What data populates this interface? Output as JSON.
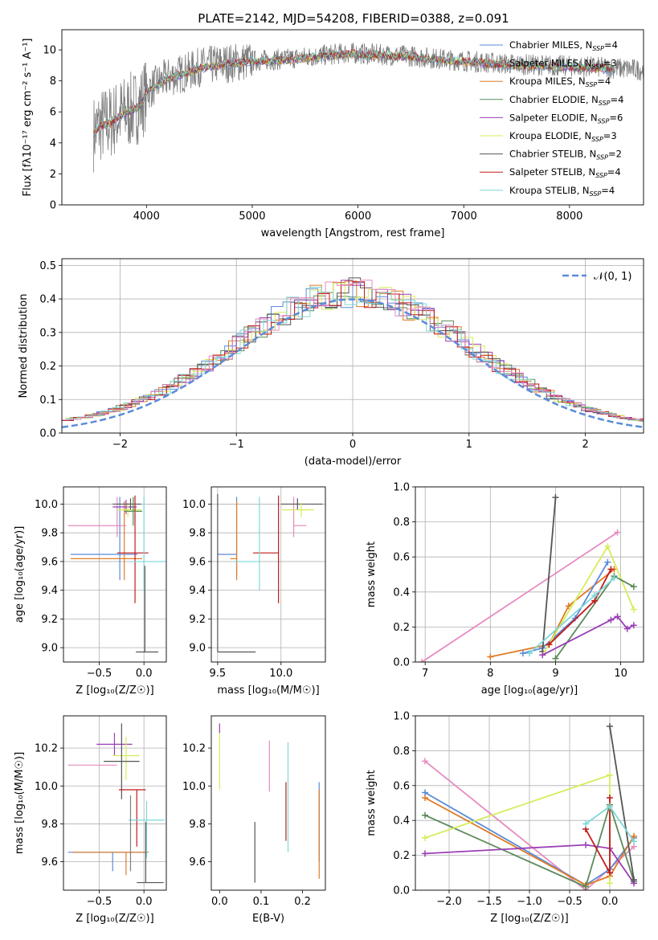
{
  "figure": {
    "title": "PLATE=2142, MJD=54208, FIBERID=0388, z=0.091"
  },
  "colors": {
    "Chabrier MILES": "#5b8bd9",
    "Salpeter MILES": "#7f7f7f",
    "Kroupa MILES": "#e07b25",
    "Chabrier ELODIE": "#5a8a5a",
    "Salpeter ELODIE": "#9b3fb5",
    "Kroupa ELODIE": "#d6ec5a",
    "Chabrier STELIB": "#555555",
    "Salpeter STELIB": "#c21a1a",
    "Kroupa STELIB": "#7dd8d8",
    "pink": "#e68bbf"
  },
  "legend_models": [
    {
      "model": "Chabrier MILES",
      "n": "4"
    },
    {
      "model": "Salpeter MILES",
      "n": "3"
    },
    {
      "model": "Kroupa MILES",
      "n": "4"
    },
    {
      "model": "Chabrier ELODIE",
      "n": "4"
    },
    {
      "model": "Salpeter ELODIE",
      "n": "6"
    },
    {
      "model": "Kroupa ELODIE",
      "n": "3"
    },
    {
      "model": "Chabrier STELIB",
      "n": "2"
    },
    {
      "model": "Salpeter STELIB",
      "n": "4"
    },
    {
      "model": "Kroupa STELIB",
      "n": "4"
    }
  ],
  "chart_data": [
    {
      "id": "spectrum",
      "type": "line",
      "xlabel": "wavelength [Angstrom, rest frame]",
      "ylabel": "Flux [fλ10⁻¹⁷ erg cm⁻² s⁻¹ A⁻¹]",
      "xlim": [
        3200,
        8700
      ],
      "ylim": [
        0,
        11.3
      ],
      "xticks": [
        4000,
        5000,
        6000,
        7000,
        8000
      ],
      "yticks": [
        0,
        2,
        4,
        6,
        8,
        10
      ],
      "grid": false,
      "legend": "top-right",
      "continuum": {
        "x": [
          3500,
          3550,
          3650,
          3750,
          3850,
          3950,
          4000,
          4100,
          4200,
          4300,
          4400,
          4500,
          4700,
          5000,
          5300,
          5600,
          5900,
          6200,
          6500,
          6800,
          7000,
          7200,
          7400,
          7800,
          8200,
          8500,
          8700
        ],
        "y": [
          4.6,
          5.1,
          5.3,
          5.8,
          6.1,
          6.5,
          7.3,
          7.8,
          8.2,
          8.4,
          8.6,
          8.9,
          9.1,
          9.3,
          9.4,
          9.6,
          9.8,
          9.7,
          9.6,
          9.4,
          9.3,
          9.2,
          9.1,
          9.0,
          8.9,
          8.8,
          8.7
        ]
      },
      "data_color": "#7f7f7f"
    },
    {
      "id": "residuals",
      "type": "line",
      "xlabel": "(data-model)/error",
      "ylabel": "Normed distribution",
      "xlim": [
        -2.5,
        2.5
      ],
      "ylim": [
        0,
        0.52
      ],
      "xticks": [
        -2,
        -1,
        0,
        1,
        2
      ],
      "yticks": [
        0.0,
        0.1,
        0.2,
        0.3,
        0.4,
        0.5
      ],
      "grid": true,
      "legend": "top-right",
      "reference_label": "𝒩(0, 1)",
      "reference_color": "#5b8bd9",
      "bin_width": 0.1
    },
    {
      "id": "age-Z",
      "type": "scatter",
      "xlabel": "Z [log₁₀(Z/Z☉)]",
      "ylabel": "age  [log₁₀(age/yr)]",
      "xlim": [
        -0.9,
        0.25
      ],
      "ylim": [
        8.9,
        10.12
      ],
      "xticks": [
        -0.5,
        0.0
      ],
      "yticks": [
        9.0,
        9.2,
        9.4,
        9.6,
        9.8,
        10.0
      ],
      "grid": true,
      "points": [
        {
          "model": "Chabrier MILES",
          "x": -0.27,
          "xerr": [
            0.55,
            0.2
          ],
          "y": 9.65,
          "yerr": [
            0.18,
            0.4
          ]
        },
        {
          "model": "Kroupa MILES",
          "x": -0.22,
          "xerr": [
            0.6,
            0.2
          ],
          "y": 9.62,
          "yerr": [
            0.15,
            0.4
          ]
        },
        {
          "model": "pink",
          "x": -0.3,
          "xerr": [
            0.55,
            0.1
          ],
          "y": 9.85,
          "yerr": [
            0.08,
            0.2
          ]
        },
        {
          "model": "Salpeter ELODIE",
          "x": -0.2,
          "xerr": [
            0.15,
            0.12
          ],
          "y": 9.98,
          "yerr": [
            0.05,
            0.05
          ]
        },
        {
          "model": "Kroupa ELODIE",
          "x": -0.18,
          "xerr": [
            0.12,
            0.15
          ],
          "y": 9.96,
          "yerr": [
            0.05,
            0.05
          ]
        },
        {
          "model": "Chabrier STELIB",
          "x": -0.15,
          "xerr": [
            0.2,
            0.12
          ],
          "y": 10.0,
          "yerr": [
            0.04,
            0.04
          ]
        },
        {
          "model": "Salpeter STELIB",
          "x": -0.1,
          "xerr": [
            0.2,
            0.15
          ],
          "y": 9.66,
          "yerr": [
            0.35,
            0.4
          ]
        },
        {
          "model": "Kroupa STELIB",
          "x": 0.0,
          "xerr": [
            0.15,
            0.25
          ],
          "y": 9.6,
          "yerr": [
            0.2,
            0.45
          ]
        },
        {
          "model": "Chabrier ELODIE",
          "x": -0.12,
          "xerr": [
            0.1,
            0.1
          ],
          "y": 9.95,
          "yerr": [
            0.1,
            0.1
          ]
        },
        {
          "model": "Chabrier STELIB",
          "x": 0.01,
          "xerr": [
            0.1,
            0.15
          ],
          "y": 8.97,
          "yerr": [
            0.0,
            0.6
          ]
        }
      ]
    },
    {
      "id": "age-mass",
      "type": "scatter",
      "xlabel": "mass [log₁₀(M/M☉)]",
      "ylabel": "",
      "xlim": [
        9.45,
        10.35
      ],
      "ylim": [
        8.9,
        10.12
      ],
      "xticks": [
        9.5,
        10.0
      ],
      "yticks": [
        9.0,
        9.2,
        9.4,
        9.6,
        9.8,
        10.0
      ],
      "grid": true,
      "points": [
        {
          "model": "Chabrier MILES",
          "x": 9.65,
          "xerr": [
            0.15,
            0.0
          ],
          "y": 9.65,
          "yerr": [
            0.15,
            0.4
          ]
        },
        {
          "model": "Kroupa MILES",
          "x": 9.65,
          "xerr": [
            0.05,
            0.0
          ],
          "y": 9.62,
          "yerr": [
            0.15,
            0.4
          ]
        },
        {
          "model": "pink",
          "x": 10.1,
          "xerr": [
            0.0,
            0.1
          ],
          "y": 9.85,
          "yerr": [
            0.08,
            0.2
          ]
        },
        {
          "model": "Salpeter STELIB",
          "x": 9.98,
          "xerr": [
            0.2,
            0.0
          ],
          "y": 9.66,
          "yerr": [
            0.35,
            0.4
          ]
        },
        {
          "model": "Kroupa STELIB",
          "x": 9.83,
          "xerr": [
            0.2,
            0.0
          ],
          "y": 9.6,
          "yerr": [
            0.2,
            0.45
          ]
        },
        {
          "model": "Chabrier STELIB",
          "x": 9.5,
          "xerr": [
            0.0,
            0.3
          ],
          "y": 8.97,
          "yerr": [
            0.0,
            1.1
          ]
        },
        {
          "model": "Chabrier STELIB",
          "x": 10.13,
          "xerr": [
            0.13,
            0.2
          ],
          "y": 10.0,
          "yerr": [
            0.04,
            0.04
          ]
        },
        {
          "model": "Kroupa ELODIE",
          "x": 10.16,
          "xerr": [
            0.15,
            0.1
          ],
          "y": 9.96,
          "yerr": [
            0.05,
            0.05
          ]
        }
      ]
    },
    {
      "id": "weight-age",
      "type": "line",
      "xlabel": "age  [log₁₀(age/yr)]",
      "ylabel": "mass weight",
      "xlim": [
        6.85,
        10.35
      ],
      "ylim": [
        0,
        1.0
      ],
      "xticks": [
        7,
        8,
        9,
        10
      ],
      "yticks": [
        0.0,
        0.2,
        0.4,
        0.6,
        0.8,
        1.0
      ],
      "grid": true,
      "series": [
        {
          "model": "pink",
          "x": [
            6.95,
            9.95
          ],
          "y": [
            0.0,
            0.74
          ]
        },
        {
          "model": "Kroupa MILES",
          "x": [
            8.0,
            8.9,
            9.2,
            9.9
          ],
          "y": [
            0.03,
            0.1,
            0.32,
            0.53
          ]
        },
        {
          "model": "Chabrier MILES",
          "x": [
            8.5,
            8.8,
            9.3,
            9.8
          ],
          "y": [
            0.05,
            0.08,
            0.25,
            0.57
          ]
        },
        {
          "model": "Chabrier STELIB",
          "x": [
            8.8,
            9.0
          ],
          "y": [
            0.06,
            0.94
          ]
        },
        {
          "model": "Kroupa ELODIE",
          "x": [
            8.8,
            9.8,
            10.2
          ],
          "y": [
            0.04,
            0.66,
            0.3
          ]
        },
        {
          "model": "Chabrier ELODIE",
          "x": [
            9.0,
            9.9,
            10.2
          ],
          "y": [
            0.02,
            0.49,
            0.43
          ]
        },
        {
          "model": "Salpeter STELIB",
          "x": [
            8.9,
            9.6,
            9.85
          ],
          "y": [
            0.1,
            0.35,
            0.53
          ]
        },
        {
          "model": "Salpeter ELODIE",
          "x": [
            8.8,
            9.85,
            9.95,
            10.1,
            10.2
          ],
          "y": [
            0.04,
            0.24,
            0.26,
            0.19,
            0.21
          ]
        },
        {
          "model": "Kroupa STELIB",
          "x": [
            8.6,
            9.6,
            9.9
          ],
          "y": [
            0.05,
            0.38,
            0.48
          ]
        }
      ]
    },
    {
      "id": "mass-Z",
      "type": "scatter",
      "xlabel": "Z [log₁₀(Z/Z☉)]",
      "ylabel": "mass [log₁₀(M/M☉)]",
      "xlim": [
        -0.9,
        0.25
      ],
      "ylim": [
        9.45,
        10.37
      ],
      "xticks": [
        -0.5,
        0.0
      ],
      "yticks": [
        9.6,
        9.8,
        10.0,
        10.2
      ],
      "grid": true,
      "points": [
        {
          "model": "Chabrier MILES",
          "x": -0.35,
          "xerr": [
            0.5,
            0.4
          ],
          "y": 9.65,
          "yerr": [
            0.1,
            0.0
          ]
        },
        {
          "model": "Kroupa MILES",
          "x": -0.2,
          "xerr": [
            0.6,
            0.25
          ],
          "y": 9.65,
          "yerr": [
            0.12,
            0.0
          ]
        },
        {
          "model": "pink",
          "x": -0.55,
          "xerr": [
            0.3,
            0.25
          ],
          "y": 10.11,
          "yerr": [
            0.0,
            0.0
          ]
        },
        {
          "model": "Salpeter ELODIE",
          "x": -0.33,
          "xerr": [
            0.2,
            0.2
          ],
          "y": 10.22,
          "yerr": [
            0.06,
            0.06
          ]
        },
        {
          "model": "Kroupa ELODIE",
          "x": -0.2,
          "xerr": [
            0.15,
            0.15
          ],
          "y": 10.16,
          "yerr": [
            0.13,
            0.1
          ]
        },
        {
          "model": "Chabrier STELIB",
          "x": -0.25,
          "xerr": [
            0.2,
            0.2
          ],
          "y": 10.13,
          "yerr": [
            0.2,
            0.2
          ]
        },
        {
          "model": "Salpeter STELIB",
          "x": -0.08,
          "xerr": [
            0.2,
            0.1
          ],
          "y": 9.98,
          "yerr": [
            0.3,
            0.0
          ]
        },
        {
          "model": "Kroupa STELIB",
          "x": 0.03,
          "xerr": [
            0.2,
            0.2
          ],
          "y": 9.82,
          "yerr": [
            0.2,
            0.1
          ]
        },
        {
          "model": "Chabrier STELIB",
          "x": 0.02,
          "xerr": [
            0.1,
            0.2
          ],
          "y": 9.49,
          "yerr": [
            0.0,
            0.32
          ]
        },
        {
          "model": "Salpeter MILES",
          "x": -0.15,
          "xerr": [
            0.0,
            0.0
          ],
          "y": 9.55,
          "yerr": [
            0.0,
            0.4
          ]
        }
      ]
    },
    {
      "id": "mass-EBV",
      "type": "scatter",
      "xlabel": "E(B-V)",
      "ylabel": "",
      "xlim": [
        -0.02,
        0.255
      ],
      "ylim": [
        9.45,
        10.37
      ],
      "xticks": [
        0.0,
        0.1,
        0.2
      ],
      "yticks": [
        9.6,
        9.8,
        10.0,
        10.2
      ],
      "grid": false,
      "points": [
        {
          "model": "Kroupa ELODIE",
          "x": 0.0,
          "yrange": [
            9.98,
            10.3
          ]
        },
        {
          "model": "Salpeter ELODIE",
          "x": 0.0,
          "yrange": [
            10.28,
            10.33
          ]
        },
        {
          "model": "Chabrier STELIB",
          "x": 0.085,
          "yrange": [
            9.49,
            9.81
          ]
        },
        {
          "model": "pink",
          "x": 0.12,
          "yrange": [
            9.97,
            10.24
          ]
        },
        {
          "model": "Salpeter STELIB",
          "x": 0.16,
          "yrange": [
            9.71,
            10.02
          ]
        },
        {
          "model": "Kroupa STELIB",
          "x": 0.165,
          "yrange": [
            9.65,
            10.23
          ]
        },
        {
          "model": "Chabrier MILES",
          "x": 0.24,
          "yrange": [
            9.6,
            10.02
          ]
        },
        {
          "model": "Kroupa MILES",
          "x": 0.24,
          "yrange": [
            9.51,
            9.98
          ]
        }
      ]
    },
    {
      "id": "weight-Z",
      "type": "line",
      "xlabel": "Z [log₁₀(Z/Z☉)]",
      "ylabel": "mass weight",
      "xlim": [
        -2.42,
        0.42
      ],
      "ylim": [
        0,
        1.0
      ],
      "xticks": [
        -2.0,
        -1.5,
        -1.0,
        -0.5,
        0.0
      ],
      "yticks": [
        0.0,
        0.2,
        0.4,
        0.6,
        0.8,
        1.0
      ],
      "grid": true,
      "series": [
        {
          "model": "pink",
          "x": [
            -2.3,
            -0.3,
            0.3
          ],
          "y": [
            0.74,
            0.0,
            0.25
          ]
        },
        {
          "model": "Chabrier MILES",
          "x": [
            -2.3,
            -0.3,
            0.0,
            0.3
          ],
          "y": [
            0.56,
            0.03,
            0.12,
            0.3
          ]
        },
        {
          "model": "Kroupa MILES",
          "x": [
            -2.3,
            -0.3,
            0.0,
            0.3
          ],
          "y": [
            0.53,
            0.03,
            0.08,
            0.31
          ]
        },
        {
          "model": "Chabrier ELODIE",
          "x": [
            -2.3,
            -0.3,
            0.0,
            0.3
          ],
          "y": [
            0.43,
            0.02,
            0.49,
            0.05
          ]
        },
        {
          "model": "Kroupa ELODIE",
          "x": [
            -2.3,
            0.0,
            0.0
          ],
          "y": [
            0.3,
            0.66,
            0.04
          ]
        },
        {
          "model": "Salpeter ELODIE",
          "x": [
            -2.3,
            -0.3,
            0.0,
            0.3
          ],
          "y": [
            0.21,
            0.26,
            0.24,
            0.04
          ]
        },
        {
          "model": "Chabrier STELIB",
          "x": [
            0.0,
            0.3
          ],
          "y": [
            0.94,
            0.06
          ]
        },
        {
          "model": "Salpeter STELIB",
          "x": [
            -0.3,
            0.0,
            0.0
          ],
          "y": [
            0.35,
            0.1,
            0.53
          ]
        },
        {
          "model": "Kroupa STELIB",
          "x": [
            -0.3,
            0.0,
            0.3
          ],
          "y": [
            0.38,
            0.48,
            0.28
          ]
        }
      ]
    }
  ]
}
